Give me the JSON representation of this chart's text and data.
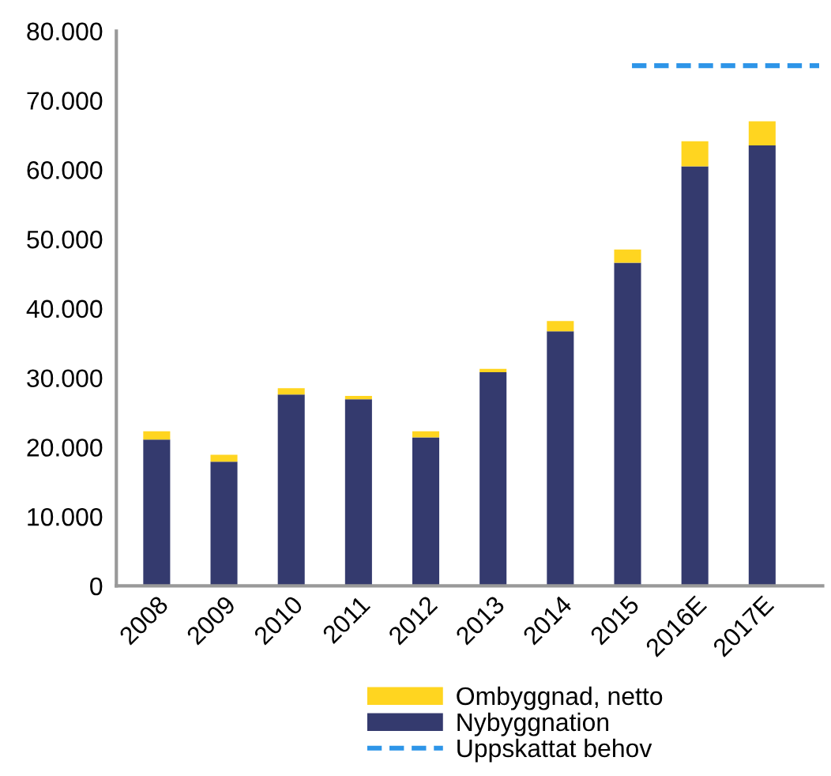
{
  "chart_data": {
    "type": "bar",
    "stacked": true,
    "categories": [
      "2008",
      "2009",
      "2010",
      "2011",
      "2012",
      "2013",
      "2014",
      "2015",
      "2016E",
      "2017E"
    ],
    "series": [
      {
        "name": "Nybyggnation",
        "color": "#343a6e",
        "values": [
          21100,
          17900,
          27600,
          26900,
          21400,
          30800,
          36700,
          46600,
          60500,
          63500
        ]
      },
      {
        "name": "Ombyggnad, netto",
        "color": "#ffd520",
        "values": [
          1200,
          1000,
          900,
          500,
          900,
          500,
          1500,
          1900,
          3600,
          3500
        ]
      }
    ],
    "ref_lines": [
      {
        "axis": "y",
        "value": 75000,
        "label": "Uppskattat behov",
        "color": "#2e95e8",
        "line_style": "dashed"
      }
    ],
    "ylim": [
      0,
      80000
    ],
    "yticks": [
      {
        "value": 0,
        "label": "0"
      },
      {
        "value": 10000,
        "label": "10.000"
      },
      {
        "value": 20000,
        "label": "20.000"
      },
      {
        "value": 30000,
        "label": "30.000"
      },
      {
        "value": 40000,
        "label": "40.000"
      },
      {
        "value": 50000,
        "label": "50.000"
      },
      {
        "value": 60000,
        "label": "60.000"
      },
      {
        "value": 70000,
        "label": "70.000"
      },
      {
        "value": 80000,
        "label": "80.000"
      }
    ],
    "grid": false,
    "legend": "bottom"
  }
}
